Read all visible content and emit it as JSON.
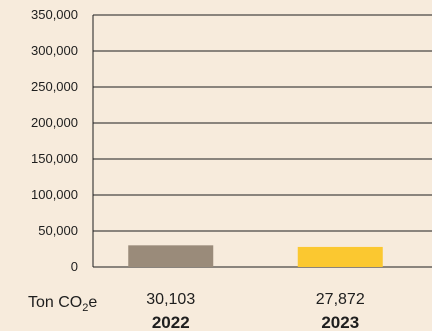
{
  "chart_data": {
    "type": "bar",
    "categories": [
      "2022",
      "2023"
    ],
    "values": [
      30103,
      27872
    ],
    "value_labels": [
      "30,103",
      "27,872"
    ],
    "ylim": [
      0,
      350000
    ],
    "yticks": [
      0,
      50000,
      100000,
      150000,
      200000,
      250000,
      300000,
      350000
    ],
    "ytick_labels": [
      "0",
      "50,000",
      "100,000",
      "150,000",
      "200,000",
      "250,000",
      "300,000",
      "350,000"
    ],
    "unit_label": {
      "prefix": "Ton CO",
      "sub": "2",
      "suffix": "e"
    },
    "grid": true,
    "colors": [
      "#9a8b7a",
      "#fbc830"
    ],
    "background": "#f7ebdc",
    "grid_color": "#1e1e1e"
  }
}
